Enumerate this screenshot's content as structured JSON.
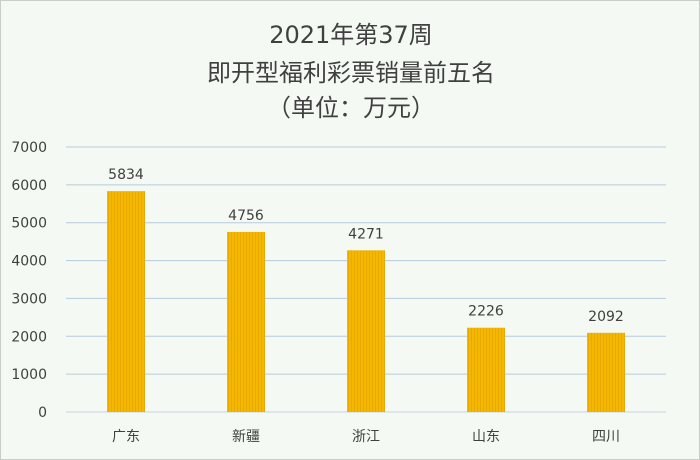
{
  "chart_data": {
    "type": "bar",
    "title_lines": [
      "2021年第37周",
      "即开型福利彩票销量前五名",
      "（单位：万元）"
    ],
    "categories": [
      "广东",
      "新疆",
      "浙江",
      "山东",
      "四川"
    ],
    "values": [
      5834,
      4756,
      4271,
      2226,
      2092
    ],
    "ylim": [
      0,
      7000
    ],
    "yticks": [
      "0",
      "1000",
      "2000",
      "3000",
      "4000",
      "5000",
      "6000",
      "7000"
    ],
    "grid": true,
    "legend": "none",
    "bar_color": "#f5b800",
    "grid_color": "#b7c9de"
  }
}
